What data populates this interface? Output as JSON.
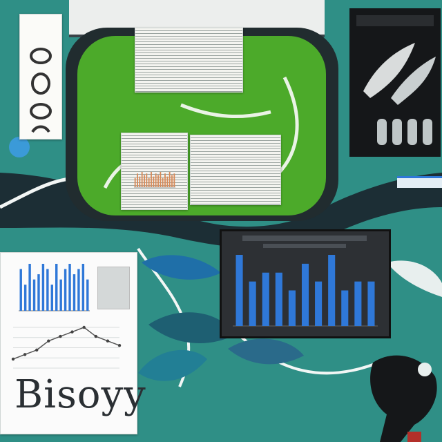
{
  "scene": {
    "colors": {
      "background": "#2f8f86",
      "dark_band": "#1c2e35",
      "moss": "#4caa2a",
      "paper": "#f4f4f0",
      "bar_blue": "#2f78d8",
      "dark_panel": "#2d3034"
    }
  },
  "poster": {
    "caption": "Bisoyy"
  },
  "small_bar_chart": {
    "values": [
      8,
      5,
      9,
      6,
      7,
      9,
      8,
      5,
      9,
      6,
      8,
      9,
      7,
      8,
      9,
      6
    ]
  },
  "line_chart": {
    "values": [
      2,
      3,
      4,
      6,
      7,
      8,
      9,
      7,
      6,
      5
    ]
  },
  "dark_bar_chart": {
    "values": [
      8,
      5,
      6,
      6,
      4,
      7,
      5,
      8,
      4,
      5,
      5
    ]
  },
  "tray_mini_bars": {
    "values": [
      6,
      9,
      7,
      10,
      8,
      9,
      6,
      10,
      7,
      9,
      8,
      10,
      6,
      9,
      7,
      10,
      8,
      9
    ]
  }
}
